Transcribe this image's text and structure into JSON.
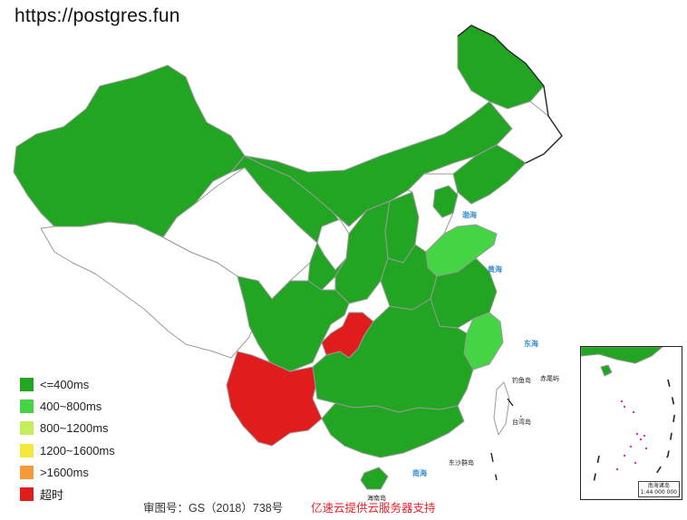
{
  "site": {
    "title": "https://postgres.fun"
  },
  "colors": {
    "le400": "#22a522",
    "r400_800": "#44d444",
    "r800_1200": "#c4ee5c",
    "r1200_1600": "#f4e83c",
    "gt1600": "#f49a3c",
    "timeout": "#e01c1c",
    "untested": "#ffffff"
  },
  "legend": [
    {
      "label": "<=400ms",
      "color": "#22a522"
    },
    {
      "label": "400~800ms",
      "color": "#44d444"
    },
    {
      "label": "800~1200ms",
      "color": "#c4ee5c"
    },
    {
      "label": "1200~1600ms",
      "color": "#f4e83c"
    },
    {
      "label": ">1600ms",
      "color": "#f49a3c"
    },
    {
      "label": "超时",
      "color": "#e01c1c"
    }
  ],
  "regions": [
    {
      "name": "xinjiang",
      "status": "le400"
    },
    {
      "name": "tibet",
      "status": "untested"
    },
    {
      "name": "qinghai",
      "status": "untested"
    },
    {
      "name": "gansu",
      "status": "le400"
    },
    {
      "name": "inner-mongolia",
      "status": "le400"
    },
    {
      "name": "heilongjiang",
      "status": "le400"
    },
    {
      "name": "jilin",
      "status": "untested"
    },
    {
      "name": "liaoning",
      "status": "le400"
    },
    {
      "name": "ningxia",
      "status": "untested"
    },
    {
      "name": "shanxi",
      "status": "le400"
    },
    {
      "name": "hebei",
      "status": "untested"
    },
    {
      "name": "beijing-tianjin",
      "status": "le400"
    },
    {
      "name": "shandong",
      "status": "r400_800"
    },
    {
      "name": "shaanxi",
      "status": "le400"
    },
    {
      "name": "henan",
      "status": "le400"
    },
    {
      "name": "jiangsu-anhui",
      "status": "le400"
    },
    {
      "name": "zhejiang",
      "status": "r400_800"
    },
    {
      "name": "sichuan",
      "status": "le400"
    },
    {
      "name": "chongqing",
      "status": "timeout"
    },
    {
      "name": "yunnan",
      "status": "timeout"
    },
    {
      "name": "central-south",
      "status": "le400"
    },
    {
      "name": "guangxi-guangdong",
      "status": "le400"
    },
    {
      "name": "hainan",
      "status": "le400"
    },
    {
      "name": "taiwan",
      "status": "untested"
    }
  ],
  "map_labels": {
    "bohai": "渤海",
    "huanghai": "黄海",
    "donghai": "东海",
    "nanhai": "南海",
    "taiwan": "台湾岛",
    "hainan": "海南岛",
    "dongsha": "东沙群岛",
    "diaoyu": "钓鱼岛",
    "chiwei": "赤尾屿"
  },
  "inset": {
    "caption_title": "南海诸岛",
    "caption_scale": "1:44 000 000"
  },
  "footer": {
    "approval": "审图号：GS（2018）738号",
    "sponsor": "亿速云提供云服务器支持"
  }
}
